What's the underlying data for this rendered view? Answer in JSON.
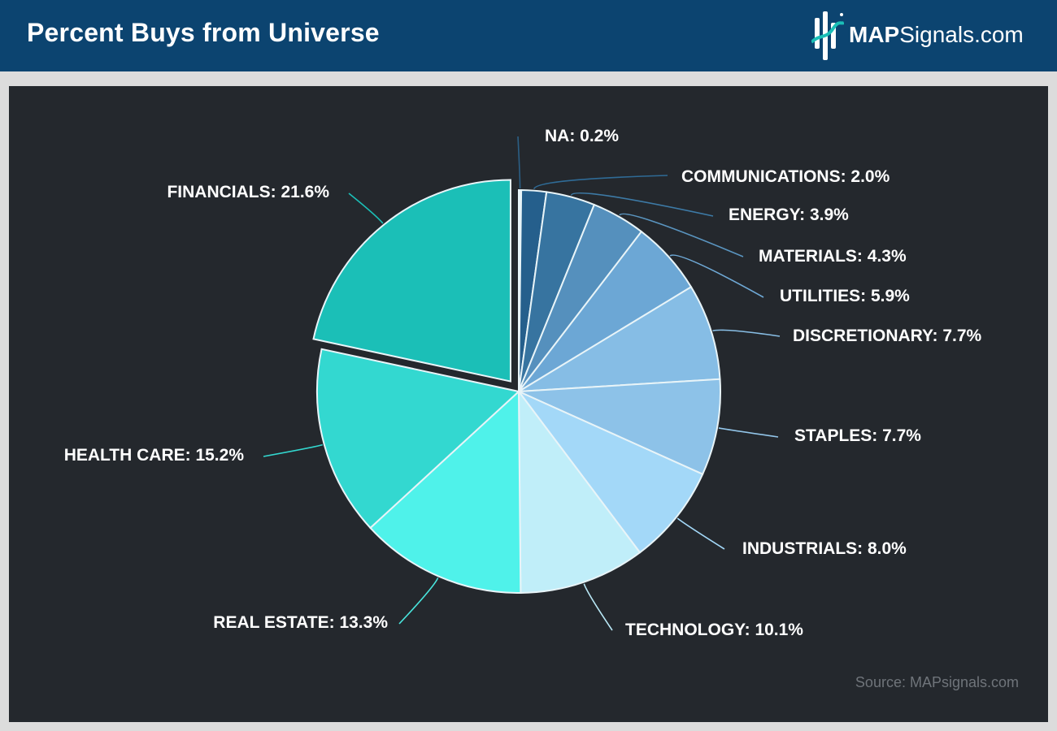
{
  "header": {
    "title": "Percent Buys from Universe",
    "logo_bold": "MAP",
    "logo_rest": "Signals.com",
    "logo_icon": "map-signals-logo-icon"
  },
  "source": "Source: MAPsignals.com",
  "colors": {
    "header_bg": "#0c4470",
    "panel_bg": "#24282d"
  },
  "chart_data": {
    "type": "pie",
    "title": "Percent Buys from Universe",
    "exploded": "FINANCIALS",
    "slices": [
      {
        "label": "NA",
        "value": 0.2,
        "text": "NA: 0.2%",
        "color": "#e8f4fa",
        "lineColor": "#2b5f85"
      },
      {
        "label": "COMMUNICATIONS",
        "value": 2.0,
        "text": "COMMUNICATIONS: 2.0%",
        "color": "#255f8c",
        "lineColor": "#2f6b96"
      },
      {
        "label": "ENERGY",
        "value": 3.9,
        "text": "ENERGY: 3.9%",
        "color": "#3774a0",
        "lineColor": "#3d7aa6"
      },
      {
        "label": "MATERIALS",
        "value": 4.3,
        "text": "MATERIALS: 4.3%",
        "color": "#5590bd",
        "lineColor": "#5a95c0"
      },
      {
        "label": "UTILITIES",
        "value": 5.9,
        "text": "UTILITIES: 5.9%",
        "color": "#6ca7d5",
        "lineColor": "#6fa9d6"
      },
      {
        "label": "DISCRETIONARY",
        "value": 7.7,
        "text": "DISCRETIONARY: 7.7%",
        "color": "#86bde5",
        "lineColor": "#88bee5"
      },
      {
        "label": "STAPLES",
        "value": 7.7,
        "text": "STAPLES: 7.7%",
        "color": "#8dc2e8",
        "lineColor": "#93c6ea"
      },
      {
        "label": "INDUSTRIALS",
        "value": 8.0,
        "text": "INDUSTRIALS: 8.0%",
        "color": "#a3d8f8",
        "lineColor": "#a3d8f8"
      },
      {
        "label": "TECHNOLOGY",
        "value": 10.1,
        "text": "TECHNOLOGY: 10.1%",
        "color": "#c0eef9",
        "lineColor": "#b9e8f6"
      },
      {
        "label": "REAL ESTATE",
        "value": 13.3,
        "text": "REAL ESTATE: 13.3%",
        "color": "#4ff2ea",
        "lineColor": "#49e6de"
      },
      {
        "label": "HEALTH CARE",
        "value": 15.2,
        "text": "HEALTH CARE: 15.2%",
        "color": "#33d8d0",
        "lineColor": "#33d8d0"
      },
      {
        "label": "FINANCIALS",
        "value": 21.6,
        "text": "FINANCIALS: 21.6%",
        "color": "#1bbfb7",
        "lineColor": "#1bbfb7"
      }
    ]
  }
}
